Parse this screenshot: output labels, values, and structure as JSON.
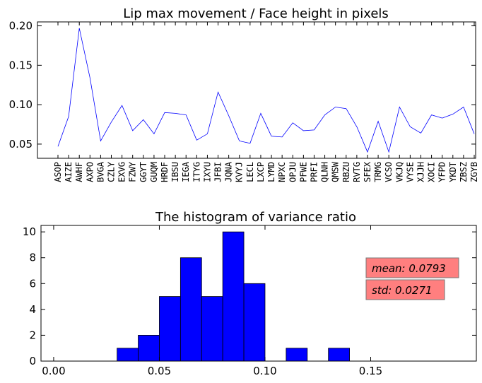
{
  "chart_data": [
    {
      "type": "line",
      "title": "Lip max movement / Face height in pixels",
      "xlabel": "",
      "ylabel": "",
      "ylim": [
        0.032,
        0.205
      ],
      "yticks": [
        "0.05",
        "0.10",
        "0.15",
        "0.20"
      ],
      "grid": false,
      "line_color": "#0000ff",
      "categories": [
        "ASOP",
        "AIZE",
        "AWHF",
        "AXPO",
        "BVGA",
        "CZLY",
        "EXVG",
        "FZWY",
        "GGYT",
        "GUQM",
        "HRDF",
        "IBSU",
        "IEGA",
        "ITYG",
        "IXYU",
        "JFBI",
        "JQNA",
        "KVYJ",
        "LECL",
        "LXCP",
        "LYMD",
        "NPXC",
        "OPJU",
        "PFWE",
        "PRFI",
        "QLNH",
        "QMSW",
        "RBZU",
        "RVTG",
        "SFEX",
        "TRMG",
        "VCSO",
        "VKJQ",
        "VYSE",
        "XJJH",
        "XOCI",
        "YFPD",
        "YKDT",
        "ZBSZ",
        "ZGYB"
      ],
      "values": [
        0.047,
        0.085,
        0.197,
        0.134,
        0.054,
        0.078,
        0.099,
        0.067,
        0.081,
        0.063,
        0.09,
        0.089,
        0.087,
        0.055,
        0.063,
        0.116,
        0.086,
        0.054,
        0.051,
        0.089,
        0.06,
        0.059,
        0.077,
        0.067,
        0.068,
        0.087,
        0.097,
        0.095,
        0.072,
        0.04,
        0.079,
        0.04,
        0.097,
        0.072,
        0.064,
        0.087,
        0.083,
        0.088,
        0.097,
        0.063
      ]
    },
    {
      "type": "bar",
      "title": "The histogram of variance ratio",
      "xlabel": "",
      "ylabel": "",
      "xlim": [
        -0.006,
        0.2
      ],
      "ylim": [
        0,
        10.5
      ],
      "xticks": [
        "0.00",
        "0.05",
        "0.10",
        "0.15"
      ],
      "yticks": [
        "0",
        "2",
        "4",
        "6",
        "8",
        "10"
      ],
      "bar_color": "#0000ff",
      "bin_width": 0.01,
      "bins": [
        {
          "start": 0.03,
          "count": 1
        },
        {
          "start": 0.04,
          "count": 2
        },
        {
          "start": 0.05,
          "count": 5
        },
        {
          "start": 0.06,
          "count": 8
        },
        {
          "start": 0.07,
          "count": 5
        },
        {
          "start": 0.08,
          "count": 10
        },
        {
          "start": 0.09,
          "count": 6
        },
        {
          "start": 0.11,
          "count": 1
        },
        {
          "start": 0.13,
          "count": 1
        }
      ],
      "annotations": {
        "mean": "mean: 0.0793",
        "std": "std: 0.0271",
        "box_color": "#ff7f7f"
      }
    }
  ]
}
